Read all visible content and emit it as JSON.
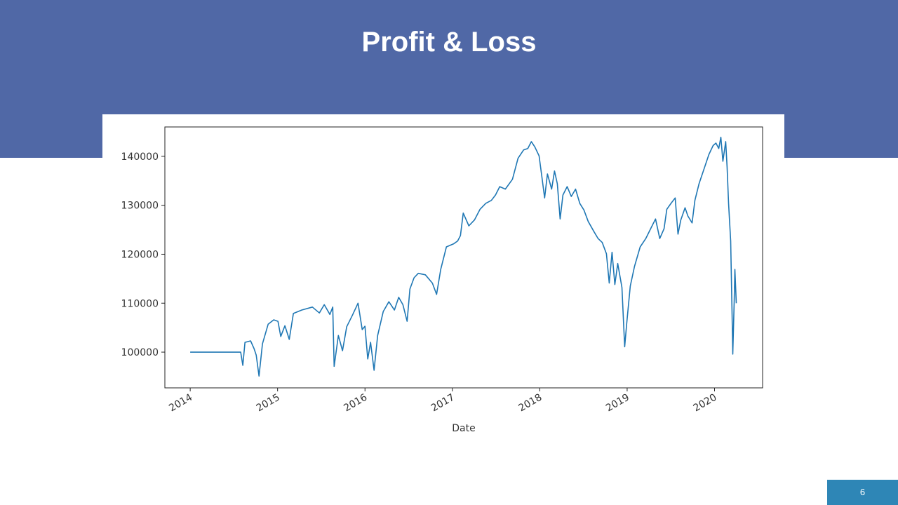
{
  "slide": {
    "title": "Profit & Loss",
    "page_number": 6
  },
  "chart_data": {
    "type": "line",
    "xlabel": "Date",
    "x": [
      2014.0,
      2014.578,
      2014.602,
      2014.627,
      2014.691,
      2014.731,
      2014.755,
      2014.787,
      2014.827,
      2014.892,
      2014.956,
      2015.004,
      2015.036,
      2015.084,
      2015.133,
      2015.181,
      2015.277,
      2015.398,
      2015.478,
      2015.534,
      2015.598,
      2015.631,
      2015.647,
      2015.695,
      2015.743,
      2015.791,
      2015.855,
      2015.92,
      2015.968,
      2016.0,
      2016.032,
      2016.064,
      2016.104,
      2016.145,
      2016.209,
      2016.273,
      2016.337,
      2016.386,
      2016.434,
      2016.482,
      2016.514,
      2016.562,
      2016.61,
      2016.691,
      2016.771,
      2016.819,
      2016.867,
      2016.932,
      2017.012,
      2017.06,
      2017.092,
      2017.124,
      2017.189,
      2017.253,
      2017.317,
      2017.382,
      2017.446,
      2017.494,
      2017.542,
      2017.606,
      2017.687,
      2017.751,
      2017.815,
      2017.863,
      2017.904,
      2017.944,
      2017.992,
      2018.024,
      2018.056,
      2018.088,
      2018.136,
      2018.169,
      2018.201,
      2018.233,
      2018.265,
      2018.313,
      2018.361,
      2018.41,
      2018.458,
      2018.506,
      2018.554,
      2018.618,
      2018.667,
      2018.715,
      2018.763,
      2018.795,
      2018.827,
      2018.859,
      2018.892,
      2018.94,
      2018.972,
      2018.996,
      2019.036,
      2019.084,
      2019.149,
      2019.213,
      2019.277,
      2019.325,
      2019.373,
      2019.422,
      2019.454,
      2019.502,
      2019.55,
      2019.582,
      2019.614,
      2019.663,
      2019.695,
      2019.743,
      2019.775,
      2019.823,
      2019.887,
      2019.936,
      2019.984,
      2020.016,
      2020.048,
      2020.072,
      2020.096,
      2020.128,
      2020.144,
      2020.161,
      2020.185,
      2020.201,
      2020.209,
      2020.225,
      2020.233,
      2020.249
    ],
    "series": [
      {
        "color": "#1f77b4",
        "values": [
          100000,
          100000,
          97300,
          102000,
          102300,
          100700,
          99400,
          95100,
          101700,
          105700,
          106600,
          106300,
          103200,
          105400,
          102600,
          107900,
          108600,
          109200,
          108000,
          109700,
          107700,
          109200,
          97100,
          103400,
          100300,
          105200,
          107500,
          110000,
          104600,
          105300,
          98600,
          102000,
          96300,
          103400,
          108300,
          110300,
          108600,
          111200,
          109700,
          106300,
          112900,
          115200,
          116100,
          115800,
          114100,
          111800,
          116900,
          121500,
          122100,
          122700,
          123800,
          128400,
          125800,
          127000,
          129200,
          130400,
          131000,
          132100,
          133800,
          133300,
          135300,
          139600,
          141300,
          141600,
          143000,
          141900,
          140100,
          135800,
          131500,
          136400,
          133300,
          137000,
          134400,
          127200,
          132100,
          133800,
          131800,
          133300,
          130400,
          129000,
          126700,
          124700,
          123200,
          122400,
          120100,
          114100,
          120400,
          113800,
          118100,
          113200,
          101100,
          106000,
          113500,
          117500,
          121500,
          123200,
          125500,
          127200,
          123200,
          125200,
          129200,
          130400,
          131500,
          124100,
          127000,
          129500,
          127800,
          126400,
          131000,
          134400,
          137800,
          140400,
          142200,
          142700,
          141600,
          143900,
          139000,
          143000,
          137800,
          130400,
          122700,
          107700,
          99600,
          110300,
          116900,
          110000
        ]
      }
    ],
    "xlim": [
      2013.71,
      2020.55
    ],
    "ylim": [
      92700,
      146000
    ],
    "xticks": [
      2014,
      2015,
      2016,
      2017,
      2018,
      2019,
      2020
    ],
    "yticks": [
      100000,
      110000,
      120000,
      130000,
      140000
    ]
  }
}
